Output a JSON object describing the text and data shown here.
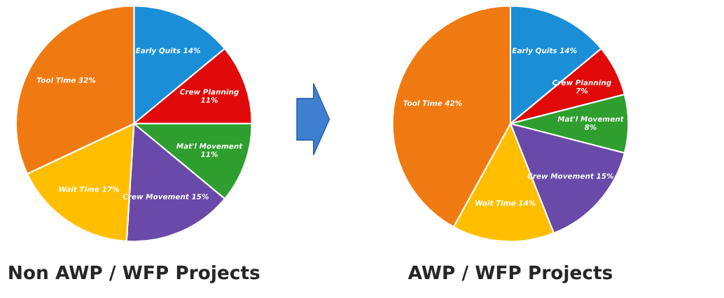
{
  "chart_data": [
    {
      "type": "pie",
      "title": "Non AWP / WFP Projects",
      "categories": [
        "Early Quits",
        "Crew Planning",
        "Mat'l Movement",
        "Crew Movement",
        "Wait Time",
        "Tool Time"
      ],
      "values": [
        14,
        11,
        11,
        15,
        17,
        32
      ],
      "value_labels": [
        "14%",
        "11%",
        "11%",
        "15%",
        "17%",
        "32%"
      ],
      "colors": [
        "#1a8fd8",
        "#e00a0a",
        "#2e9e2e",
        "#6a4aa8",
        "#ffbf00",
        "#f07a12"
      ]
    },
    {
      "type": "pie",
      "title": "AWP / WFP Projects",
      "categories": [
        "Early Quits",
        "Crew Planning",
        "Mat'l Movement",
        "Crew Movement",
        "Wait Time",
        "Tool Time"
      ],
      "values": [
        14,
        7,
        8,
        15,
        14,
        42
      ],
      "value_labels": [
        "14%",
        "7%",
        "8%",
        "15%",
        "14%",
        "42%"
      ],
      "colors": [
        "#1a8fd8",
        "#e00a0a",
        "#2e9e2e",
        "#6a4aa8",
        "#ffbf00",
        "#f07a12"
      ]
    }
  ]
}
